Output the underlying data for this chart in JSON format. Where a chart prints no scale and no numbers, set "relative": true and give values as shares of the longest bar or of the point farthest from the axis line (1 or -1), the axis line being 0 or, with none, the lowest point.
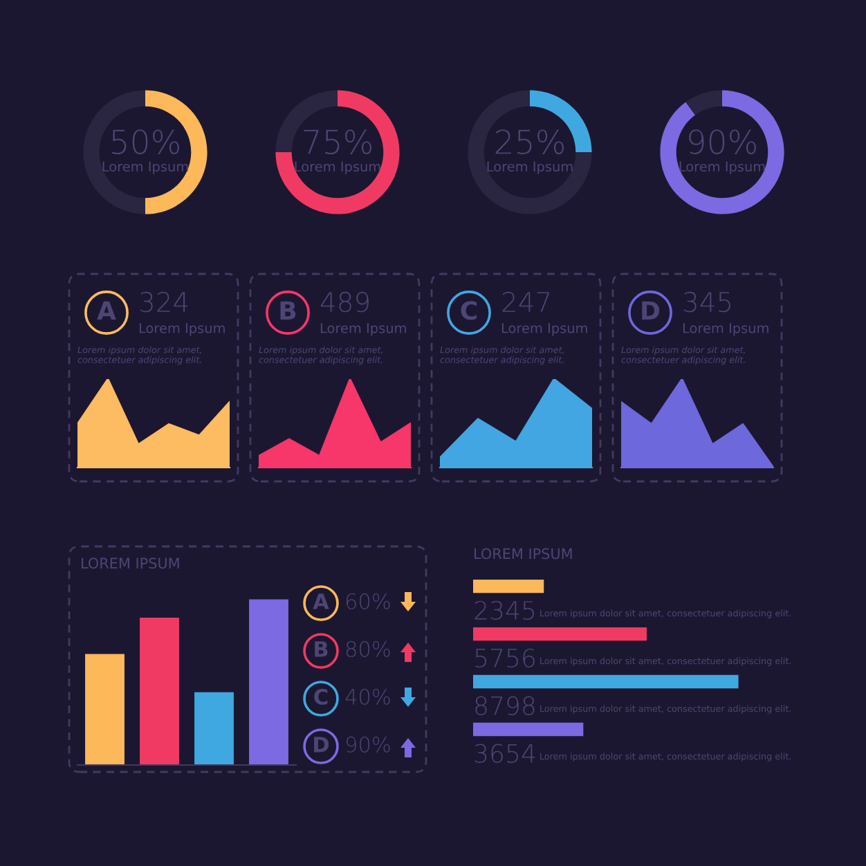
{
  "chart_data": [
    {
      "type": "donut",
      "categories": [
        null,
        null
      ],
      "values": [
        50,
        50
      ],
      "colors": [
        "#fdb85a",
        "#2a2540"
      ],
      "value_labels": [
        "50%",
        null
      ],
      "annotations": [
        "Lorem Ipsum"
      ]
    },
    {
      "type": "donut",
      "categories": [
        null,
        null
      ],
      "values": [
        75,
        25
      ],
      "colors": [
        "#f03a64",
        "#2a2540"
      ],
      "value_labels": [
        "75%",
        null
      ],
      "annotations": [
        "Lorem Ipsum"
      ]
    },
    {
      "type": "donut",
      "categories": [
        null,
        null
      ],
      "values": [
        25,
        75
      ],
      "colors": [
        "#3fa8e0",
        "#2a2540"
      ],
      "value_labels": [
        "25%",
        null
      ],
      "annotations": [
        "Lorem Ipsum"
      ]
    },
    {
      "type": "donut",
      "categories": [
        null,
        null
      ],
      "values": [
        90,
        10
      ],
      "colors": [
        "#7b6ae2",
        "#2a2540"
      ],
      "value_labels": [
        "90%",
        null
      ],
      "annotations": [
        "Lorem Ipsum"
      ]
    },
    {
      "type": "area",
      "relative": true,
      "categories": [
        null,
        null,
        null,
        null,
        null,
        null
      ],
      "values": [
        0.49,
        1,
        0.26,
        0.49,
        0.36,
        0.74
      ],
      "color": "#fdbb62",
      "annotations": [
        "A",
        "324",
        "Lorem Ipsum",
        "Lorem ipsum dolor sit amet,\nconsectetuer adipiscing elit."
      ]
    },
    {
      "type": "area",
      "relative": true,
      "categories": [
        null,
        null,
        null,
        null,
        null,
        null
      ],
      "values": [
        0.13,
        0.32,
        0.13,
        1,
        0.28,
        0.5
      ],
      "color": "#f7366a",
      "annotations": [
        "B",
        "489",
        "Lorem Ipsum",
        "Lorem ipsum dolor sit amet,\nconsectetuer adipiscing elit."
      ]
    },
    {
      "type": "area",
      "relative": true,
      "categories": [
        null,
        null,
        null,
        null,
        null
      ],
      "values": [
        0.11,
        0.55,
        0.29,
        1,
        0.66
      ],
      "color": "#42a6e2",
      "annotations": [
        "C",
        "247",
        "Lorem Ipsum",
        "Lorem ipsum dolor sit amet,\nconsectetuer adipiscing elit."
      ]
    },
    {
      "type": "area",
      "relative": true,
      "categories": [
        null,
        null,
        null,
        null,
        null,
        null
      ],
      "values": [
        0.74,
        0.49,
        1,
        0.26,
        0.49,
        0
      ],
      "color": "#6d68dc",
      "annotations": [
        "D",
        "345",
        "Lorem Ipsum",
        "Lorem ipsum dolor sit amet,\nconsectetuer adipiscing elit."
      ]
    },
    {
      "type": "bar",
      "relative": true,
      "title": "LOREM IPSUM",
      "categories": [
        null,
        null,
        null,
        null
      ],
      "values": [
        0.67,
        0.89,
        0.44,
        1
      ],
      "colors": [
        "#fdb85a",
        "#f03a64",
        "#3fa8e0",
        "#7b6ae2"
      ]
    },
    {
      "type": "other",
      "colors": [
        "#fdb85a",
        "#f03a64",
        "#3fa8e0",
        "#7b6ae2"
      ],
      "annotations": [
        "A",
        "60%",
        "B",
        "80%",
        "C",
        "40%",
        "D",
        "90%"
      ]
    },
    {
      "type": "bar",
      "orientation": "horizontal",
      "title": "LOREM IPSUM",
      "categories": [
        null,
        null,
        null,
        null
      ],
      "values": [
        2345,
        5756,
        8798,
        3654
      ],
      "colors": [
        "#fdb85a",
        "#f03a64",
        "#3fa8e0",
        "#7b6ae2"
      ],
      "data_labels": true,
      "annotations": [
        "Lorem ipsum dolor sit amet, consectetuer adipiscing elit.",
        "Lorem ipsum dolor sit amet, consectetuer adipiscing elit.",
        "Lorem ipsum dolor sit amet, consectetuer adipiscing elit.",
        "Lorem ipsum dolor sit amet, consectetuer adipiscing elit."
      ]
    }
  ]
}
